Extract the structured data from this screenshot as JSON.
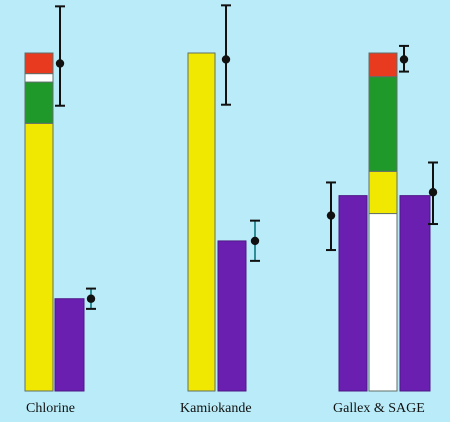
{
  "chart_data": {
    "type": "bar",
    "title": "",
    "xlabel": "",
    "ylabel": "",
    "ylim": [
      0,
      1
    ],
    "grid": false,
    "legend": "none",
    "categories": [
      "Chlorine",
      "Kamiokande",
      "Gallex & SAGE"
    ],
    "series": [
      {
        "kind": "theory-stack",
        "values_by_category": [
          [
            {
              "color": "#f0e800",
              "value": 0.792
            },
            {
              "color": "#1f9a2a",
              "value": 0.122
            },
            {
              "color": "#ffffff",
              "value": 0.025
            },
            {
              "color": "#e83a1e",
              "value": 0.061
            }
          ],
          [
            {
              "color": "#f0e800",
              "value": 1.0
            }
          ],
          [
            {
              "color": "#ffffff",
              "value": 0.525
            },
            {
              "color": "#f0e800",
              "value": 0.125
            },
            {
              "color": "#1f9a2a",
              "value": 0.28
            },
            {
              "color": "#e83a1e",
              "value": 0.07
            }
          ]
        ]
      },
      {
        "kind": "measured-bar",
        "color": "#6a1fb0",
        "values_by_category": [
          0.273,
          0.444,
          0.578
        ]
      }
    ],
    "error_points": [
      {
        "category": "Chlorine",
        "value": 0.969,
        "low": 0.844,
        "high": 1.138,
        "color": "#111111"
      },
      {
        "category": "Chlorine",
        "value": 0.273,
        "low": 0.243,
        "high": 0.303,
        "color": "#111111"
      },
      {
        "category": "Kamiokande",
        "value": 0.981,
        "low": 0.847,
        "high": 1.141,
        "color": "#111111"
      },
      {
        "category": "Kamiokande",
        "value": 0.444,
        "low": 0.385,
        "high": 0.504,
        "color": "#111111"
      },
      {
        "category": "Gallex & SAGE",
        "value": 0.519,
        "low": 0.417,
        "high": 0.617,
        "color": "#111111"
      },
      {
        "category": "Gallex & SAGE",
        "value": 0.981,
        "low": 0.945,
        "high": 1.021,
        "color": "#111111"
      },
      {
        "category": "Gallex & SAGE",
        "value": 0.588,
        "low": 0.494,
        "high": 0.676,
        "color": "#111111"
      }
    ]
  }
}
